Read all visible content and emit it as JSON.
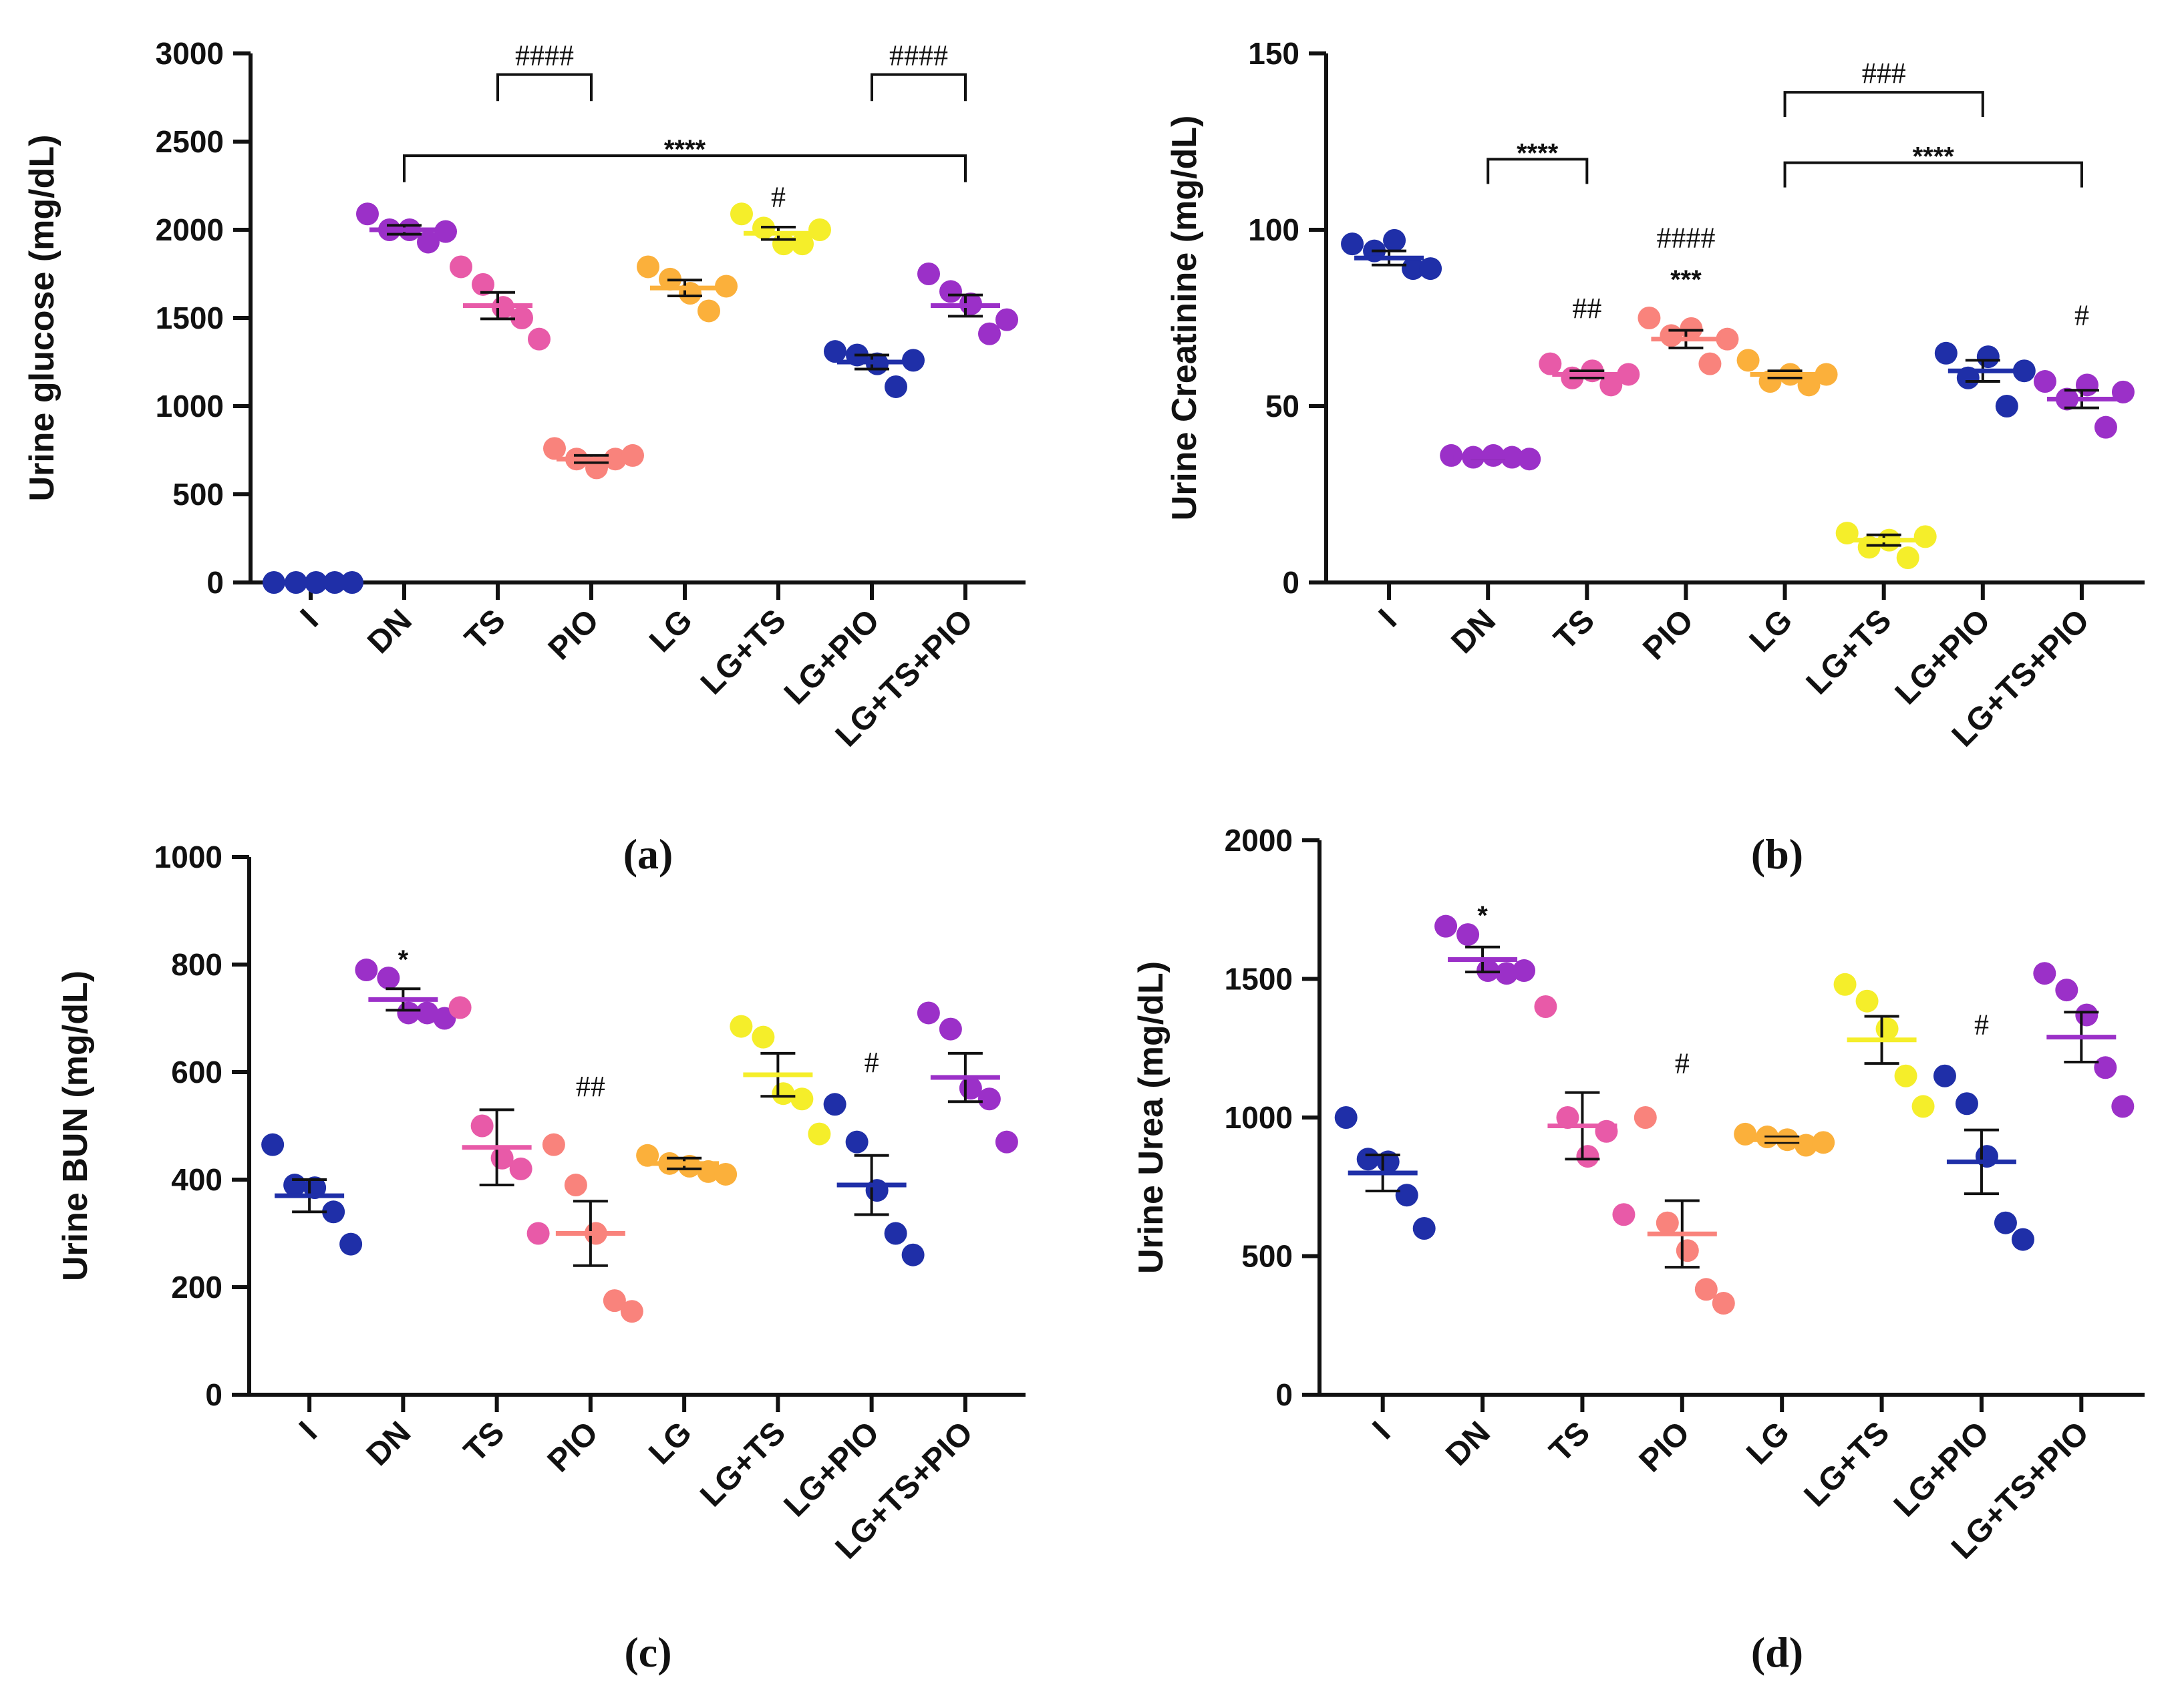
{
  "chart_data": [
    {
      "id": "a",
      "type": "scatter",
      "panel_label": "(a)",
      "title": "",
      "xlabel": "",
      "ylabel": "Urine glucose (mg/dL)",
      "ylim": [
        0,
        3000
      ],
      "yticks": [
        0,
        500,
        1000,
        1500,
        2000,
        2500,
        3000
      ],
      "categories": [
        "I",
        "DN",
        "TS",
        "PIO",
        "LG",
        "LG+TS",
        "LG+PIO",
        "LG+TS+PIO"
      ],
      "colors": [
        "#1f2fa8",
        "#9b30c8",
        "#e85aa8",
        "#f9837c",
        "#fbb03b",
        "#f5ee2a",
        "#1f2fa8",
        "#9b30c8"
      ],
      "points": [
        [
          0,
          0,
          0,
          0,
          0
        ],
        [
          2090,
          2000,
          2000,
          1930,
          1990
        ],
        [
          1790,
          1690,
          1560,
          1500,
          1380
        ],
        [
          760,
          700,
          650,
          700,
          720
        ],
        [
          1790,
          1720,
          1640,
          1540,
          1680
        ],
        [
          2090,
          2010,
          1920,
          1920,
          2000
        ],
        [
          1310,
          1290,
          1240,
          1110,
          1260
        ],
        [
          1750,
          1650,
          1580,
          1410,
          1490
        ]
      ],
      "mean": [
        0,
        2000,
        1570,
        700,
        1670,
        1980,
        1250,
        1570
      ],
      "sem": [
        0,
        25,
        75,
        20,
        45,
        35,
        40,
        60
      ],
      "annotations": [
        {
          "group": 5,
          "text": "#",
          "value": 2130
        }
      ],
      "brackets": [
        {
          "from": 2,
          "to": 3,
          "text": "####",
          "value": 2880,
          "drop": 150
        },
        {
          "from": 6,
          "to": 7,
          "text": "####",
          "value": 2880,
          "drop": 150
        },
        {
          "from": 1,
          "to": 7,
          "text": "****",
          "value": 2420,
          "drop": 150
        }
      ]
    },
    {
      "id": "b",
      "type": "scatter",
      "panel_label": "(b)",
      "title": "",
      "xlabel": "",
      "ylabel": "Urine Creatinine (mg/dL)",
      "ylim": [
        0,
        150
      ],
      "yticks": [
        0,
        50,
        100,
        150
      ],
      "categories": [
        "I",
        "DN",
        "TS",
        "PIO",
        "LG",
        "LG+TS",
        "LG+PIO",
        "LG+TS+PIO"
      ],
      "colors": [
        "#1f2fa8",
        "#9b30c8",
        "#e85aa8",
        "#f9837c",
        "#fbb03b",
        "#f5ee2a",
        "#1f2fa8",
        "#9b30c8"
      ],
      "points": [
        [
          96,
          94,
          97,
          89,
          89
        ],
        [
          36,
          35.5,
          36,
          35.5,
          35
        ],
        [
          62,
          58,
          60,
          56,
          59
        ],
        [
          75,
          70,
          72,
          62,
          69
        ],
        [
          63,
          57,
          59,
          56,
          59
        ],
        [
          14,
          10,
          12,
          7,
          13
        ],
        [
          65,
          58,
          64,
          50,
          60
        ],
        [
          57,
          52,
          56,
          44,
          54
        ]
      ],
      "mean": [
        92,
        35.5,
        59,
        69,
        59,
        12,
        60,
        52
      ],
      "sem": [
        2,
        0.3,
        1,
        2.5,
        1,
        1.5,
        3,
        2.5
      ],
      "annotations": [
        {
          "group": 2,
          "text": "##",
          "value": 75
        },
        {
          "group": 3,
          "text": "####",
          "value": 95
        },
        {
          "group": 3,
          "text": "***",
          "value": 86
        },
        {
          "group": 7,
          "text": "#",
          "value": 73
        }
      ],
      "brackets": [
        {
          "from": 1,
          "to": 2,
          "text": "****",
          "value": 120,
          "drop": 7
        },
        {
          "from": 4,
          "to": 6,
          "text": "###",
          "value": 139,
          "drop": 7
        },
        {
          "from": 4,
          "to": 7,
          "text": "****",
          "value": 119,
          "drop": 7
        }
      ]
    },
    {
      "id": "c",
      "type": "scatter",
      "panel_label": "(c)",
      "title": "",
      "xlabel": "",
      "ylabel": "Urine BUN (mg/dL)",
      "ylim": [
        0,
        1000
      ],
      "yticks": [
        0,
        200,
        400,
        600,
        800,
        1000
      ],
      "categories": [
        "I",
        "DN",
        "TS",
        "PIO",
        "LG",
        "LG+TS",
        "LG+PIO",
        "LG+TS+PIO"
      ],
      "colors": [
        "#1f2fa8",
        "#9b30c8",
        "#e85aa8",
        "#f9837c",
        "#fbb03b",
        "#f5ee2a",
        "#1f2fa8",
        "#9b30c8"
      ],
      "points": [
        [
          465,
          390,
          385,
          340,
          280
        ],
        [
          790,
          775,
          710,
          710,
          700
        ],
        [
          720,
          500,
          440,
          420,
          300
        ],
        [
          465,
          390,
          300,
          175,
          155
        ],
        [
          445,
          430,
          425,
          415,
          410
        ],
        [
          685,
          665,
          560,
          550,
          485
        ],
        [
          540,
          470,
          380,
          300,
          260
        ],
        [
          710,
          680,
          570,
          550,
          470
        ]
      ],
      "mean": [
        370,
        735,
        460,
        300,
        430,
        595,
        390,
        590
      ],
      "sem": [
        30,
        20,
        70,
        60,
        10,
        40,
        55,
        45
      ],
      "annotations": [
        {
          "group": 1,
          "text": "*",
          "value": 810
        },
        {
          "group": 3,
          "text": "##",
          "value": 555
        },
        {
          "group": 6,
          "text": "#",
          "value": 600
        }
      ],
      "brackets": []
    },
    {
      "id": "d",
      "type": "scatter",
      "panel_label": "(d)",
      "title": "",
      "xlabel": "",
      "ylabel": "Urine Urea (mg/dL)",
      "ylim": [
        0,
        2000
      ],
      "yticks": [
        0,
        500,
        1000,
        1500,
        2000
      ],
      "categories": [
        "I",
        "DN",
        "TS",
        "PIO",
        "LG",
        "LG+TS",
        "LG+PIO",
        "LG+TS+PIO"
      ],
      "colors": [
        "#1f2fa8",
        "#9b30c8",
        "#e85aa8",
        "#f9837c",
        "#fbb03b",
        "#f5ee2a",
        "#1f2fa8",
        "#9b30c8"
      ],
      "points": [
        [
          1000,
          850,
          840,
          720,
          600
        ],
        [
          1690,
          1660,
          1530,
          1520,
          1530
        ],
        [
          1400,
          1000,
          860,
          950,
          650
        ],
        [
          1000,
          620,
          520,
          380,
          330
        ],
        [
          940,
          930,
          920,
          900,
          910
        ],
        [
          1480,
          1420,
          1320,
          1150,
          1040
        ],
        [
          1150,
          1050,
          860,
          620,
          560
        ],
        [
          1520,
          1460,
          1370,
          1180,
          1040
        ]
      ],
      "mean": [
        800,
        1570,
        970,
        580,
        920,
        1280,
        840,
        1290
      ],
      "sem": [
        65,
        45,
        120,
        120,
        10,
        85,
        115,
        90
      ],
      "annotations": [
        {
          "group": 1,
          "text": "*",
          "value": 1730
        },
        {
          "group": 3,
          "text": "#",
          "value": 1160
        },
        {
          "group": 6,
          "text": "#",
          "value": 1300
        }
      ],
      "brackets": []
    }
  ]
}
